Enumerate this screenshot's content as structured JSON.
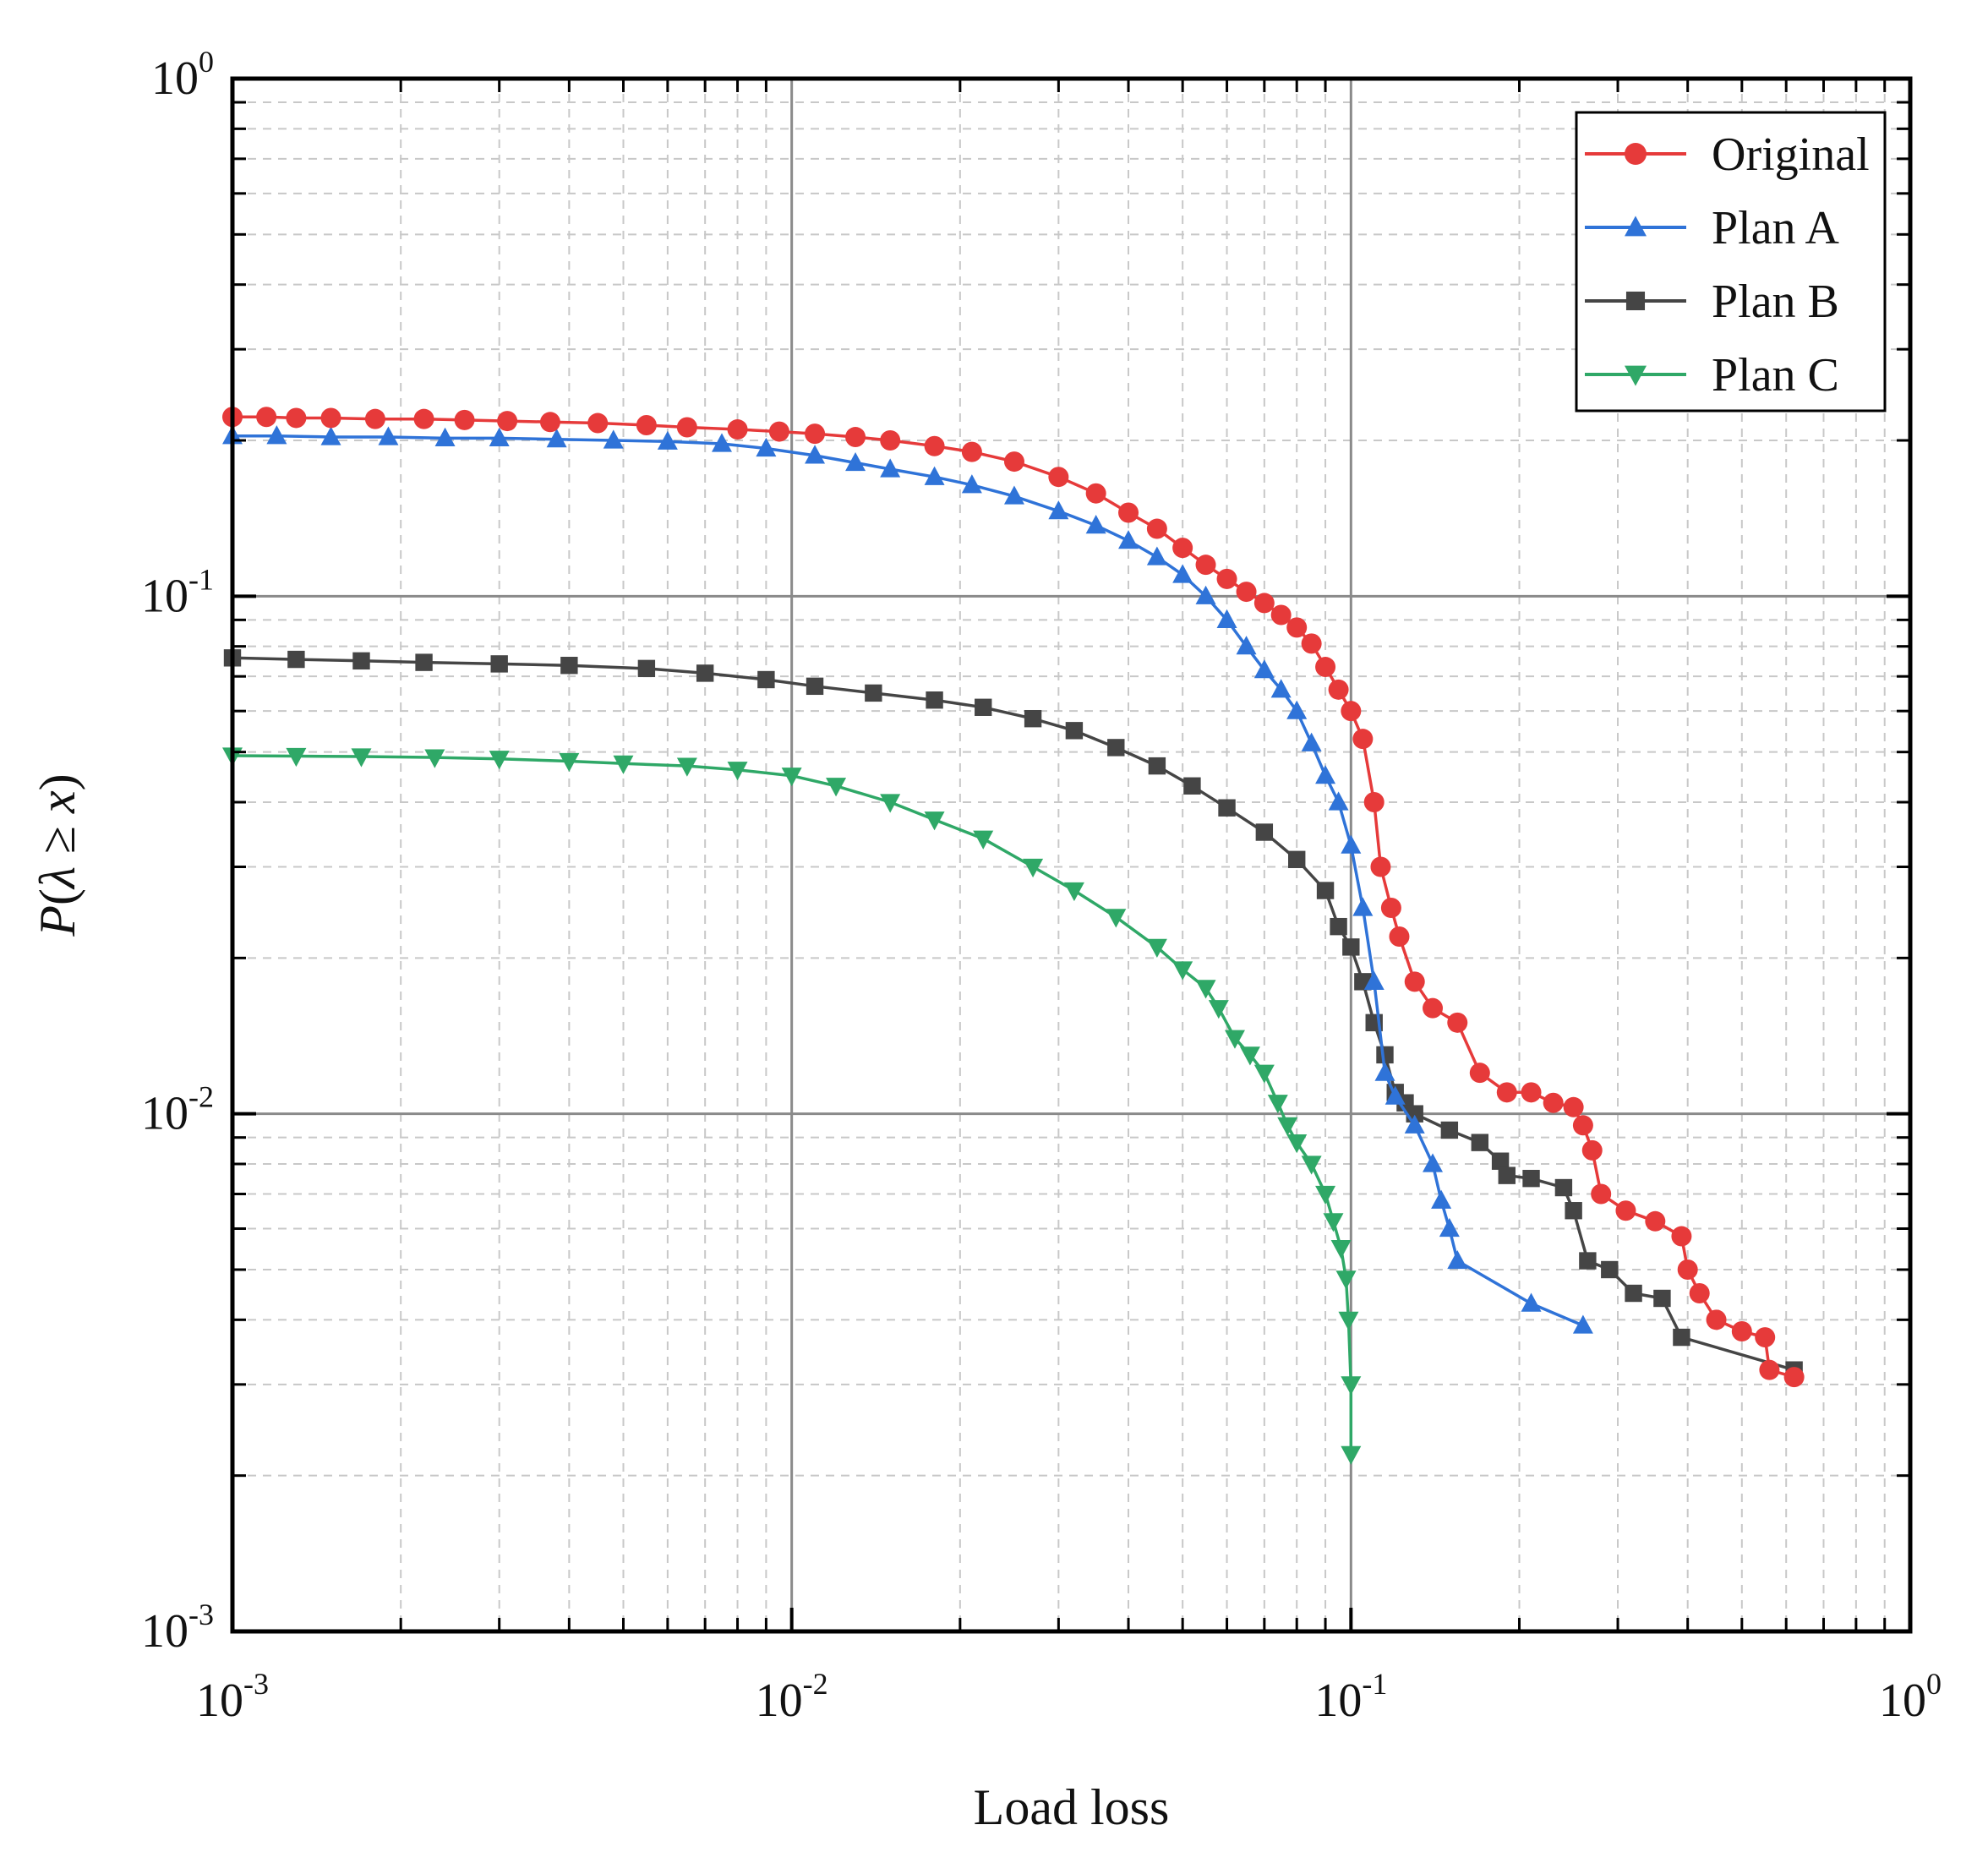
{
  "chart_data": {
    "type": "line",
    "xscale": "log",
    "yscale": "log",
    "xlim": [
      0.001,
      1
    ],
    "ylim": [
      0.001,
      1
    ],
    "xlabel": "Load loss",
    "ylabel": "P(λ ≥ x)",
    "ylabel_parts": {
      "p": "P",
      "open": "(",
      "lambda": "λ",
      "geq": " ≥ ",
      "x": "x",
      "close": ")"
    },
    "x_ticks": [
      {
        "value": 0.001,
        "base": "10",
        "exp": "-3"
      },
      {
        "value": 0.01,
        "base": "10",
        "exp": "-2"
      },
      {
        "value": 0.1,
        "base": "10",
        "exp": "-1"
      },
      {
        "value": 1,
        "base": "10",
        "exp": "0"
      }
    ],
    "y_ticks": [
      {
        "value": 0.001,
        "base": "10",
        "exp": "-3"
      },
      {
        "value": 0.01,
        "base": "10",
        "exp": "-2"
      },
      {
        "value": 0.1,
        "base": "10",
        "exp": "-1"
      },
      {
        "value": 1,
        "base": "10",
        "exp": "0"
      }
    ],
    "grid": true,
    "legend_position": "top-right",
    "series": [
      {
        "name": "Original",
        "color": "#e63a3a",
        "marker": "circle",
        "points": [
          [
            0.001,
            0.222
          ],
          [
            0.00115,
            0.222
          ],
          [
            0.0013,
            0.221
          ],
          [
            0.0015,
            0.221
          ],
          [
            0.0018,
            0.22
          ],
          [
            0.0022,
            0.22
          ],
          [
            0.0026,
            0.219
          ],
          [
            0.0031,
            0.218
          ],
          [
            0.0037,
            0.217
          ],
          [
            0.0045,
            0.216
          ],
          [
            0.0055,
            0.214
          ],
          [
            0.0065,
            0.212
          ],
          [
            0.008,
            0.21
          ],
          [
            0.0095,
            0.208
          ],
          [
            0.011,
            0.206
          ],
          [
            0.013,
            0.203
          ],
          [
            0.015,
            0.2
          ],
          [
            0.018,
            0.195
          ],
          [
            0.021,
            0.19
          ],
          [
            0.025,
            0.182
          ],
          [
            0.03,
            0.17
          ],
          [
            0.035,
            0.158
          ],
          [
            0.04,
            0.145
          ],
          [
            0.045,
            0.135
          ],
          [
            0.05,
            0.124
          ],
          [
            0.055,
            0.115
          ],
          [
            0.06,
            0.108
          ],
          [
            0.065,
            0.102
          ],
          [
            0.07,
            0.097
          ],
          [
            0.075,
            0.092
          ],
          [
            0.08,
            0.087
          ],
          [
            0.085,
            0.081
          ],
          [
            0.09,
            0.073
          ],
          [
            0.095,
            0.066
          ],
          [
            0.1,
            0.06
          ],
          [
            0.105,
            0.053
          ],
          [
            0.11,
            0.04
          ],
          [
            0.113,
            0.03
          ],
          [
            0.118,
            0.025
          ],
          [
            0.122,
            0.022
          ],
          [
            0.13,
            0.018
          ],
          [
            0.14,
            0.016
          ],
          [
            0.155,
            0.015
          ],
          [
            0.17,
            0.012
          ],
          [
            0.19,
            0.011
          ],
          [
            0.21,
            0.011
          ],
          [
            0.23,
            0.0105
          ],
          [
            0.25,
            0.0103
          ],
          [
            0.26,
            0.0095
          ],
          [
            0.27,
            0.0085
          ],
          [
            0.28,
            0.007
          ],
          [
            0.31,
            0.0065
          ],
          [
            0.35,
            0.0062
          ],
          [
            0.39,
            0.0058
          ],
          [
            0.4,
            0.005
          ],
          [
            0.42,
            0.0045
          ],
          [
            0.45,
            0.004
          ],
          [
            0.5,
            0.0038
          ],
          [
            0.55,
            0.0037
          ],
          [
            0.56,
            0.0032
          ],
          [
            0.62,
            0.0031
          ]
        ]
      },
      {
        "name": "Plan A",
        "color": "#2f73d8",
        "marker": "triangle-up",
        "points": [
          [
            0.001,
            0.204
          ],
          [
            0.0012,
            0.204
          ],
          [
            0.0015,
            0.203
          ],
          [
            0.0019,
            0.203
          ],
          [
            0.0024,
            0.202
          ],
          [
            0.003,
            0.202
          ],
          [
            0.0038,
            0.201
          ],
          [
            0.0048,
            0.2
          ],
          [
            0.006,
            0.199
          ],
          [
            0.0075,
            0.197
          ],
          [
            0.009,
            0.193
          ],
          [
            0.011,
            0.187
          ],
          [
            0.013,
            0.181
          ],
          [
            0.015,
            0.176
          ],
          [
            0.018,
            0.17
          ],
          [
            0.021,
            0.164
          ],
          [
            0.025,
            0.156
          ],
          [
            0.03,
            0.146
          ],
          [
            0.035,
            0.137
          ],
          [
            0.04,
            0.128
          ],
          [
            0.045,
            0.119
          ],
          [
            0.05,
            0.11
          ],
          [
            0.055,
            0.1
          ],
          [
            0.06,
            0.09
          ],
          [
            0.065,
            0.08
          ],
          [
            0.07,
            0.072
          ],
          [
            0.075,
            0.066
          ],
          [
            0.08,
            0.06
          ],
          [
            0.085,
            0.052
          ],
          [
            0.09,
            0.045
          ],
          [
            0.095,
            0.04
          ],
          [
            0.1,
            0.033
          ],
          [
            0.105,
            0.025
          ],
          [
            0.11,
            0.018
          ],
          [
            0.115,
            0.012
          ],
          [
            0.12,
            0.0108
          ],
          [
            0.13,
            0.0095
          ],
          [
            0.14,
            0.008
          ],
          [
            0.145,
            0.0068
          ],
          [
            0.15,
            0.006
          ],
          [
            0.155,
            0.0052
          ],
          [
            0.21,
            0.0043
          ],
          [
            0.26,
            0.0039
          ]
        ]
      },
      {
        "name": "Plan B",
        "color": "#454545",
        "marker": "square",
        "points": [
          [
            0.001,
            0.076
          ],
          [
            0.0013,
            0.0755
          ],
          [
            0.0017,
            0.075
          ],
          [
            0.0022,
            0.0745
          ],
          [
            0.003,
            0.074
          ],
          [
            0.004,
            0.0735
          ],
          [
            0.0055,
            0.0725
          ],
          [
            0.007,
            0.071
          ],
          [
            0.009,
            0.069
          ],
          [
            0.011,
            0.067
          ],
          [
            0.014,
            0.065
          ],
          [
            0.018,
            0.063
          ],
          [
            0.022,
            0.061
          ],
          [
            0.027,
            0.058
          ],
          [
            0.032,
            0.055
          ],
          [
            0.038,
            0.051
          ],
          [
            0.045,
            0.047
          ],
          [
            0.052,
            0.043
          ],
          [
            0.06,
            0.039
          ],
          [
            0.07,
            0.035
          ],
          [
            0.08,
            0.031
          ],
          [
            0.09,
            0.027
          ],
          [
            0.095,
            0.023
          ],
          [
            0.1,
            0.021
          ],
          [
            0.105,
            0.018
          ],
          [
            0.11,
            0.015
          ],
          [
            0.115,
            0.013
          ],
          [
            0.12,
            0.011
          ],
          [
            0.125,
            0.0105
          ],
          [
            0.13,
            0.01
          ],
          [
            0.15,
            0.0093
          ],
          [
            0.17,
            0.0088
          ],
          [
            0.185,
            0.0081
          ],
          [
            0.19,
            0.0076
          ],
          [
            0.21,
            0.0075
          ],
          [
            0.24,
            0.0072
          ],
          [
            0.25,
            0.0065
          ],
          [
            0.265,
            0.0052
          ],
          [
            0.29,
            0.005
          ],
          [
            0.32,
            0.0045
          ],
          [
            0.36,
            0.0044
          ],
          [
            0.39,
            0.0037
          ],
          [
            0.62,
            0.0032
          ]
        ]
      },
      {
        "name": "Plan C",
        "color": "#2fa867",
        "marker": "triangle-down",
        "points": [
          [
            0.001,
            0.0492
          ],
          [
            0.0013,
            0.0491
          ],
          [
            0.0017,
            0.049
          ],
          [
            0.0023,
            0.0488
          ],
          [
            0.003,
            0.0485
          ],
          [
            0.004,
            0.048
          ],
          [
            0.005,
            0.0475
          ],
          [
            0.0065,
            0.047
          ],
          [
            0.008,
            0.0462
          ],
          [
            0.01,
            0.045
          ],
          [
            0.012,
            0.043
          ],
          [
            0.015,
            0.04
          ],
          [
            0.018,
            0.037
          ],
          [
            0.022,
            0.034
          ],
          [
            0.027,
            0.03
          ],
          [
            0.032,
            0.027
          ],
          [
            0.038,
            0.024
          ],
          [
            0.045,
            0.021
          ],
          [
            0.05,
            0.019
          ],
          [
            0.055,
            0.0175
          ],
          [
            0.058,
            0.016
          ],
          [
            0.062,
            0.014
          ],
          [
            0.066,
            0.013
          ],
          [
            0.07,
            0.012
          ],
          [
            0.074,
            0.0105
          ],
          [
            0.077,
            0.0095
          ],
          [
            0.08,
            0.0088
          ],
          [
            0.085,
            0.008
          ],
          [
            0.09,
            0.007
          ],
          [
            0.093,
            0.0062
          ],
          [
            0.096,
            0.0055
          ],
          [
            0.098,
            0.0048
          ],
          [
            0.099,
            0.004
          ],
          [
            0.1,
            0.003
          ],
          [
            0.1,
            0.0022
          ]
        ]
      }
    ]
  }
}
